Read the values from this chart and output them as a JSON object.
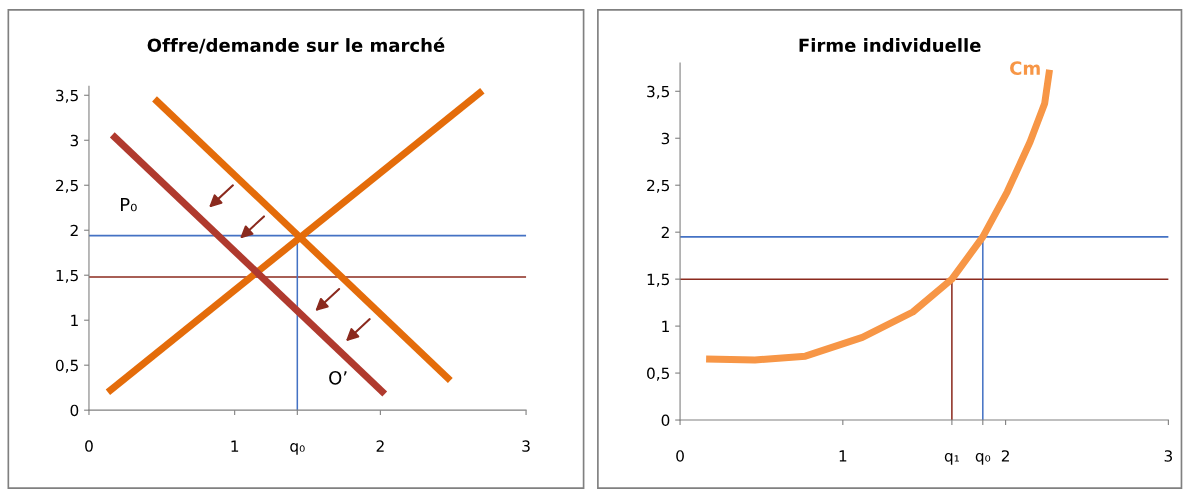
{
  "chart_data": [
    {
      "type": "line",
      "title": "Offre/demande sur le marché",
      "series": [
        {
          "color": "#e46c0a",
          "x": [
            0.13,
            2.7
          ],
          "values": [
            0.2,
            3.55
          ]
        },
        {
          "color": "#e46c0a",
          "x": [
            0.45,
            2.48
          ],
          "values": [
            3.46,
            0.33
          ]
        },
        {
          "color": "#b03a2e",
          "x": [
            0.16,
            2.03
          ],
          "values": [
            3.06,
            0.18
          ]
        }
      ],
      "xlim": [
        0,
        3
      ],
      "xticks": [
        0,
        1,
        {
          "value": 1.43,
          "label": "q₀"
        },
        2,
        3
      ],
      "ylim": [
        0,
        3.6
      ],
      "yticks": [
        0,
        {
          "value": 0.5,
          "label": "0,5"
        },
        1,
        {
          "value": 1.5,
          "label": "1,5"
        },
        2,
        {
          "value": 2.5,
          "label": "2,5"
        },
        3,
        {
          "value": 3.5,
          "label": "3,5"
        }
      ],
      "ref_lines": [
        {
          "axis": "y",
          "value": 1.94,
          "color": "#4472c4"
        },
        {
          "axis": "y",
          "value": 1.48,
          "color": "#8b2a1e"
        },
        {
          "axis": "x",
          "value": 1.43,
          "color": "#4472c4"
        }
      ],
      "annotations": [
        "P₀",
        "O’"
      ],
      "grid": false,
      "legend": false
    },
    {
      "type": "line",
      "title": "Firme individuelle",
      "series": [
        {
          "name": "Cm",
          "color": "#f79646",
          "x": [
            0.16,
            0.46,
            0.77,
            1.12,
            1.43,
            1.67,
            1.86,
            2.01,
            2.15,
            2.24,
            2.27
          ],
          "values": [
            0.65,
            0.64,
            0.68,
            0.88,
            1.15,
            1.5,
            1.95,
            2.43,
            2.96,
            3.37,
            3.73
          ]
        }
      ],
      "xlim": [
        0,
        3
      ],
      "xticks": [
        0,
        1,
        {
          "value": 1.67,
          "label": "q₁"
        },
        {
          "value": 1.86,
          "label": "q₀"
        },
        2,
        3
      ],
      "ylim": [
        0,
        3.8
      ],
      "yticks": [
        0,
        {
          "value": 0.5,
          "label": "0,5"
        },
        1,
        {
          "value": 1.5,
          "label": "1,5"
        },
        2,
        {
          "value": 2.5,
          "label": "2,5"
        },
        3,
        {
          "value": 3.5,
          "label": "3,5"
        }
      ],
      "ref_lines": [
        {
          "axis": "y",
          "value": 1.95,
          "color": "#4472c4"
        },
        {
          "axis": "y",
          "value": 1.5,
          "color": "#8b2a1e"
        },
        {
          "axis": "x",
          "value": 1.86,
          "color": "#4472c4"
        },
        {
          "axis": "x",
          "value": 1.67,
          "color": "#8b2a1e"
        }
      ],
      "grid": false,
      "legend": false
    }
  ]
}
